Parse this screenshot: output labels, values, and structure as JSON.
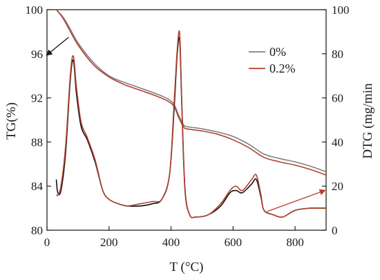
{
  "chart_data": {
    "type": "line",
    "x_label": "T (°C)",
    "y_left_label": "TG(%)",
    "y_right_label": "DTG (mg/min",
    "xlim": [
      0,
      900
    ],
    "ylim_left": [
      80,
      100
    ],
    "ylim_right": [
      0,
      100
    ],
    "x_ticks": [
      0,
      200,
      400,
      600,
      800
    ],
    "y_left_ticks": [
      80,
      84,
      88,
      92,
      96,
      100
    ],
    "y_right_ticks": [
      0,
      20,
      40,
      60,
      80,
      100
    ],
    "legend_position": "top-right",
    "colors": {
      "s0": "#7f7f7f",
      "s02": "#b3412e",
      "dtg0": "#111111",
      "arrow": "#c0392b"
    },
    "series": [
      {
        "name": "0%",
        "key": "s0",
        "axis": "left",
        "x": [
          30,
          50,
          70,
          100,
          150,
          200,
          250,
          300,
          350,
          390,
          410,
          425,
          440,
          450,
          500,
          550,
          600,
          650,
          700,
          750,
          800,
          850,
          900
        ],
        "y": [
          100.0,
          99.4,
          98.5,
          97.0,
          95.2,
          94.0,
          93.4,
          92.9,
          92.4,
          91.9,
          91.4,
          90.4,
          89.6,
          89.4,
          89.2,
          88.9,
          88.5,
          87.8,
          86.9,
          86.5,
          86.2,
          85.8,
          85.3
        ]
      },
      {
        "name": "0.2%",
        "key": "s02",
        "axis": "left",
        "x": [
          30,
          50,
          70,
          100,
          150,
          200,
          250,
          300,
          350,
          390,
          410,
          425,
          440,
          450,
          500,
          550,
          600,
          650,
          700,
          750,
          800,
          850,
          900
        ],
        "y": [
          100.0,
          99.3,
          98.3,
          96.8,
          95.0,
          93.9,
          93.2,
          92.7,
          92.2,
          91.7,
          91.2,
          90.2,
          89.4,
          89.2,
          89.0,
          88.7,
          88.2,
          87.5,
          86.6,
          86.2,
          85.9,
          85.5,
          85.0
        ]
      },
      {
        "name": "",
        "key": "dtg0",
        "axis": "right",
        "x": [
          30,
          35,
          45,
          60,
          75,
          85,
          95,
          110,
          130,
          155,
          180,
          200,
          230,
          260,
          300,
          340,
          370,
          395,
          410,
          420,
          428,
          435,
          445,
          460,
          480,
          520,
          560,
          590,
          610,
          630,
          660,
          675,
          690,
          700,
          730,
          760,
          800,
          850,
          900
        ],
        "y": [
          23,
          17,
          18,
          35,
          68,
          77,
          62,
          47,
          41,
          31,
          18,
          14,
          12,
          11,
          11,
          12,
          14,
          25,
          55,
          80,
          86,
          55,
          18,
          7,
          6,
          7,
          11,
          17,
          18,
          17,
          21,
          23,
          15,
          9,
          7,
          6,
          9,
          10,
          10
        ]
      },
      {
        "name": "",
        "key": "s02",
        "axis": "right",
        "x": [
          30,
          35,
          45,
          60,
          75,
          85,
          95,
          110,
          130,
          155,
          180,
          200,
          230,
          260,
          300,
          340,
          370,
          395,
          410,
          420,
          428,
          435,
          445,
          460,
          480,
          520,
          560,
          590,
          610,
          630,
          660,
          675,
          690,
          700,
          730,
          760,
          800,
          850,
          900
        ],
        "y": [
          16,
          16,
          20,
          38,
          70,
          79,
          65,
          49,
          42,
          32,
          18,
          14,
          12,
          11,
          12,
          13,
          14,
          25,
          58,
          82,
          89,
          57,
          19,
          7,
          6,
          7,
          12,
          18,
          20,
          18,
          23,
          25,
          16,
          9,
          7,
          6,
          9,
          10,
          10
        ]
      }
    ],
    "annotations": [
      {
        "type": "arrow",
        "color_key": "dtg0",
        "from": [
          70,
          97.5
        ],
        "to": [
          0,
          95.9
        ]
      },
      {
        "type": "arrow",
        "color_key": "arrow",
        "from": [
          710,
          81.7
        ],
        "to": [
          895,
          83.6
        ]
      }
    ]
  }
}
